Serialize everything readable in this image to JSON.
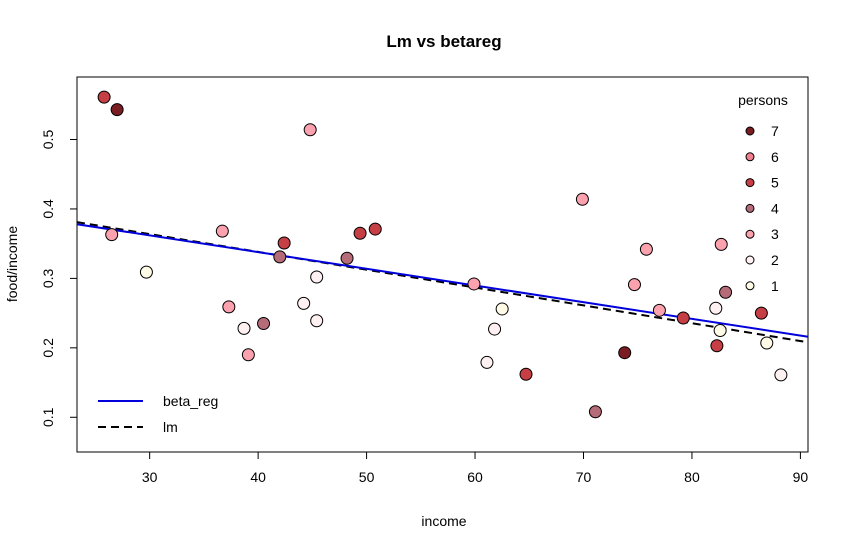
{
  "chart_data": {
    "type": "scatter",
    "title": "Lm vs betareg",
    "xlabel": "income",
    "ylabel": "food/income",
    "xlim": [
      23.3,
      90.7
    ],
    "ylim": [
      0.05,
      0.59
    ],
    "x_ticks": [
      30,
      40,
      50,
      60,
      70,
      80,
      90
    ],
    "y_ticks": [
      0.1,
      0.2,
      0.3,
      0.4,
      0.5
    ],
    "grid": false,
    "persons_colors": {
      "1": "#fffbe6",
      "2": "#fff0f2",
      "3": "#fba2ae",
      "4": "#b56b78",
      "5": "#c63f44",
      "6": "#f27f90",
      "7": "#7a1d22"
    },
    "points": [
      {
        "x": 25.8,
        "y": 0.561,
        "persons": 5
      },
      {
        "x": 27.0,
        "y": 0.543,
        "persons": 7
      },
      {
        "x": 26.5,
        "y": 0.363,
        "persons": 3
      },
      {
        "x": 29.7,
        "y": 0.309,
        "persons": 1
      },
      {
        "x": 36.7,
        "y": 0.368,
        "persons": 3
      },
      {
        "x": 37.3,
        "y": 0.259,
        "persons": 3
      },
      {
        "x": 38.7,
        "y": 0.228,
        "persons": 2
      },
      {
        "x": 39.1,
        "y": 0.19,
        "persons": 3
      },
      {
        "x": 40.5,
        "y": 0.235,
        "persons": 4
      },
      {
        "x": 42.0,
        "y": 0.331,
        "persons": 4
      },
      {
        "x": 42.4,
        "y": 0.351,
        "persons": 5
      },
      {
        "x": 44.2,
        "y": 0.264,
        "persons": 2
      },
      {
        "x": 44.8,
        "y": 0.514,
        "persons": 3
      },
      {
        "x": 45.4,
        "y": 0.302,
        "persons": 2
      },
      {
        "x": 45.4,
        "y": 0.239,
        "persons": 2
      },
      {
        "x": 48.2,
        "y": 0.329,
        "persons": 4
      },
      {
        "x": 49.4,
        "y": 0.365,
        "persons": 5
      },
      {
        "x": 50.8,
        "y": 0.371,
        "persons": 5
      },
      {
        "x": 59.9,
        "y": 0.292,
        "persons": 3
      },
      {
        "x": 61.1,
        "y": 0.179,
        "persons": 2
      },
      {
        "x": 61.8,
        "y": 0.227,
        "persons": 2
      },
      {
        "x": 62.5,
        "y": 0.256,
        "persons": 1
      },
      {
        "x": 64.7,
        "y": 0.162,
        "persons": 5
      },
      {
        "x": 69.9,
        "y": 0.414,
        "persons": 3
      },
      {
        "x": 71.1,
        "y": 0.108,
        "persons": 4
      },
      {
        "x": 73.8,
        "y": 0.193,
        "persons": 7
      },
      {
        "x": 74.7,
        "y": 0.291,
        "persons": 3
      },
      {
        "x": 75.8,
        "y": 0.342,
        "persons": 3
      },
      {
        "x": 77.0,
        "y": 0.254,
        "persons": 3
      },
      {
        "x": 79.2,
        "y": 0.243,
        "persons": 5
      },
      {
        "x": 82.2,
        "y": 0.257,
        "persons": 2
      },
      {
        "x": 82.3,
        "y": 0.203,
        "persons": 5
      },
      {
        "x": 82.6,
        "y": 0.225,
        "persons": 1
      },
      {
        "x": 82.7,
        "y": 0.349,
        "persons": 3
      },
      {
        "x": 83.1,
        "y": 0.28,
        "persons": 4
      },
      {
        "x": 86.4,
        "y": 0.25,
        "persons": 5
      },
      {
        "x": 86.9,
        "y": 0.207,
        "persons": 1
      },
      {
        "x": 88.2,
        "y": 0.161,
        "persons": 2
      }
    ],
    "lines": [
      {
        "name": "beta_reg",
        "color": "#0000dd",
        "dash": "solid",
        "x": [
          23.3,
          90.7
        ],
        "y": [
          0.378,
          0.216
        ]
      },
      {
        "name": "lm",
        "color": "#000000",
        "dash": "dashed",
        "x": [
          23.3,
          90.7
        ],
        "y": [
          0.381,
          0.208
        ]
      }
    ],
    "legend_persons": {
      "title": "persons",
      "placement": "top-right",
      "entries": [
        "7",
        "6",
        "5",
        "4",
        "3",
        "2",
        "1"
      ]
    },
    "legend_lines": {
      "placement": "bottom-left",
      "entries": [
        "beta_reg",
        "lm"
      ]
    }
  }
}
